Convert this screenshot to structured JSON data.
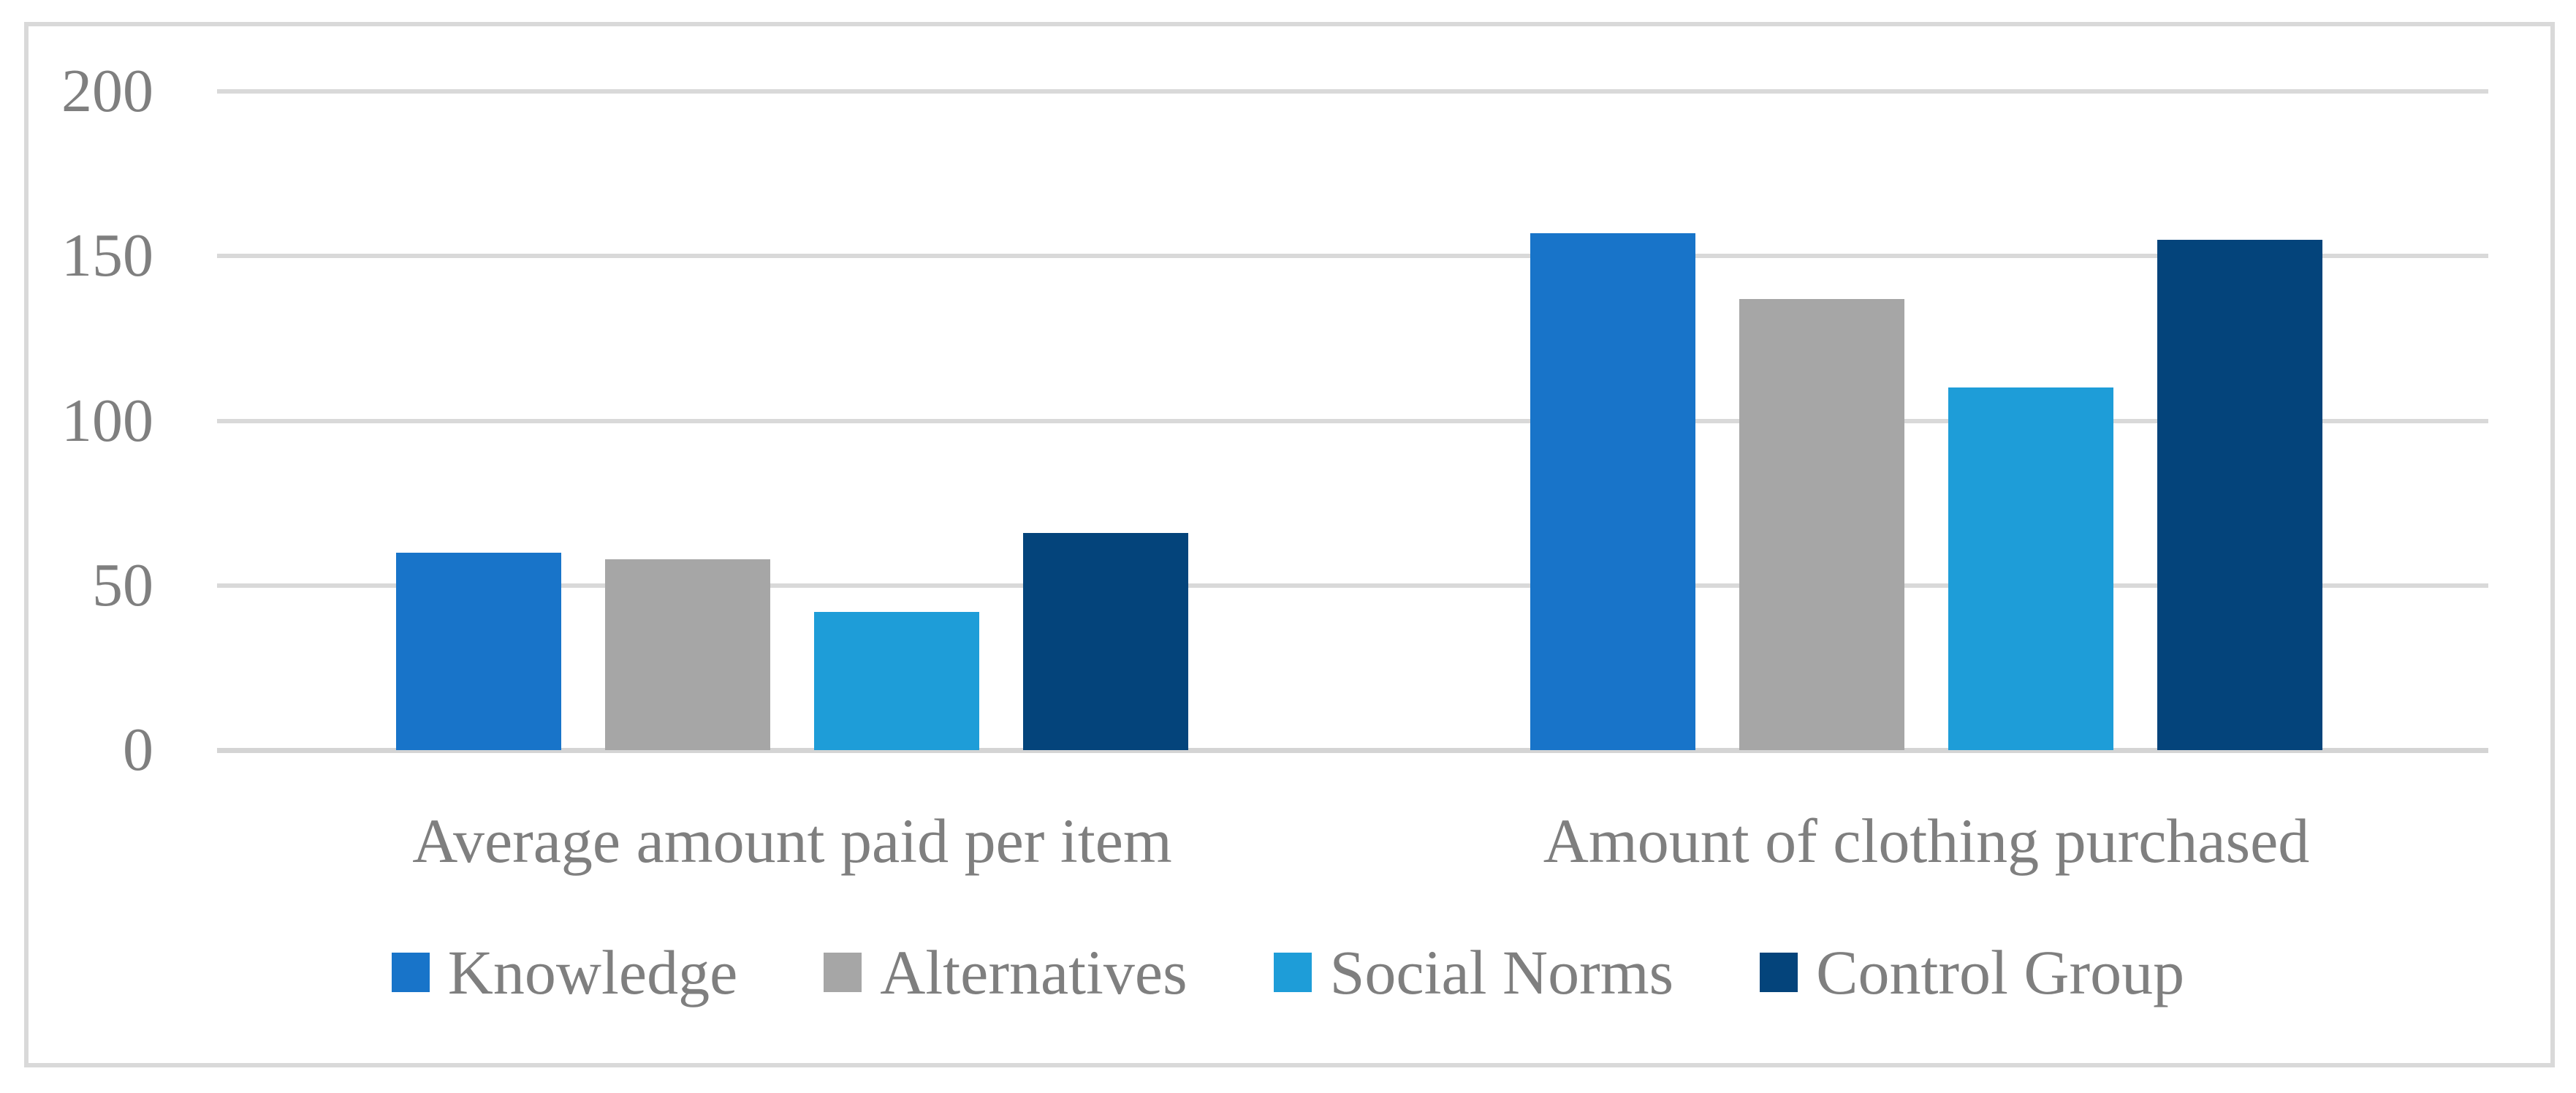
{
  "chart_data": {
    "type": "bar",
    "categories": [
      "Average amount paid per item",
      "Amount of clothing purchased"
    ],
    "series": [
      {
        "name": "Knowledge",
        "color": "#1874C9",
        "values": [
          60,
          157
        ]
      },
      {
        "name": "Alternatives",
        "color": "#A6A6A6",
        "values": [
          58,
          137
        ]
      },
      {
        "name": "Social Norms",
        "color": "#1E9DD8",
        "values": [
          42,
          110
        ]
      },
      {
        "name": "Control Group",
        "color": "#04447B",
        "values": [
          66,
          155
        ]
      }
    ],
    "y_axis": {
      "min": 0,
      "max": 200,
      "ticks": [
        0,
        50,
        100,
        150,
        200
      ],
      "grid": true
    },
    "legend_position": "bottom",
    "style": {
      "grid_color": "#D9D9D9",
      "frame_color": "#D9D9D9",
      "text_color": "#7F7F7F",
      "background": "#FFFFFF"
    }
  }
}
